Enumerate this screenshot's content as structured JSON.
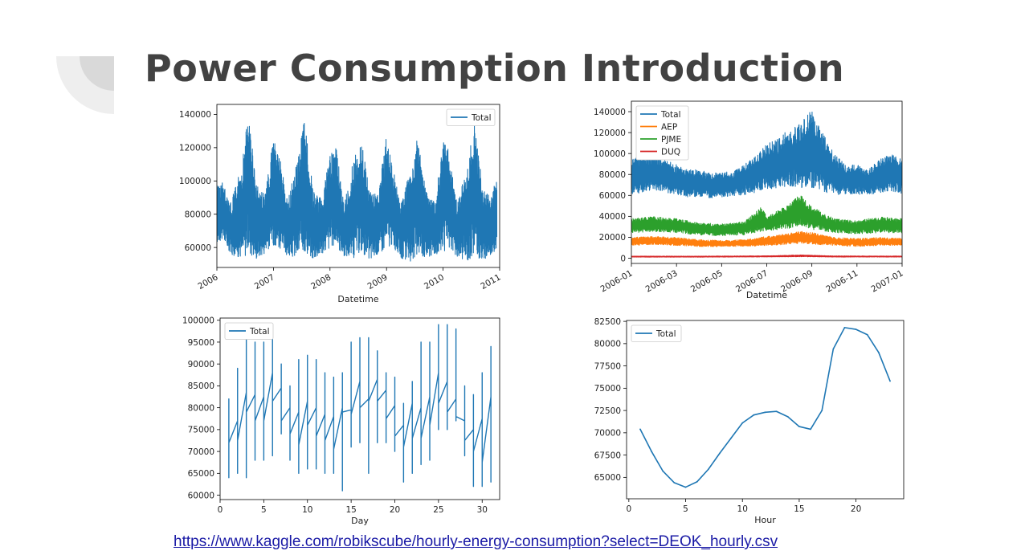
{
  "slide": {
    "title": "Power Consumption Introduction",
    "link": "https://www.kaggle.com/robikscube/hourly-energy-consumption?select=DEOK_hourly.csv"
  },
  "colors": {
    "title": "#424242",
    "link": "#1a1aa6",
    "deco_light": "#eeeeee",
    "deco_dark": "#d9d9d9",
    "series_blue": "#1f77b4",
    "series_orange": "#ff7f0e",
    "series_green": "#2ca02c",
    "series_red": "#d62728"
  },
  "chart_data": [
    {
      "id": "total-2006-2011",
      "type": "line",
      "title": "",
      "xlabel": "Datetime",
      "ylabel": "",
      "xlim": [
        2006,
        2011
      ],
      "ylim": [
        48000,
        146000
      ],
      "xticks": [
        2006,
        2007,
        2008,
        2009,
        2010,
        2011
      ],
      "xtick_labels": [
        "2006",
        "2007",
        "2008",
        "2009",
        "2010",
        "2011"
      ],
      "xtick_rotation": 30,
      "yticks": [
        60000,
        80000,
        100000,
        120000,
        140000
      ],
      "ytick_labels": [
        "60000",
        "80000",
        "100000",
        "120000",
        "140000"
      ],
      "grid": false,
      "legend_position": "top-right",
      "series": [
        {
          "name": "Total",
          "color": "#1f77b4",
          "render": "hourly-band",
          "x": [
            2006.0,
            2006.1,
            2006.25,
            2006.45,
            2006.55,
            2006.7,
            2006.85,
            2007.0,
            2007.1,
            2007.25,
            2007.45,
            2007.55,
            2007.7,
            2007.85,
            2008.0,
            2008.1,
            2008.25,
            2008.45,
            2008.55,
            2008.7,
            2008.85,
            2009.0,
            2009.1,
            2009.25,
            2009.45,
            2009.55,
            2009.7,
            2009.85,
            2010.0,
            2010.1,
            2010.25,
            2010.45,
            2010.55,
            2010.7,
            2010.85,
            2010.95
          ],
          "high": [
            99000,
            100000,
            88000,
            112000,
            145000,
            100000,
            92000,
            128000,
            118000,
            88000,
            120000,
            140000,
            95000,
            90000,
            118000,
            125000,
            86000,
            120000,
            127000,
            95000,
            92000,
            130000,
            112000,
            86000,
            112000,
            128000,
            95000,
            88000,
            125000,
            120000,
            86000,
            115000,
            136000,
            98000,
            90000,
            106000
          ],
          "low": [
            62000,
            64000,
            55000,
            52000,
            55000,
            52000,
            56000,
            60000,
            58000,
            54000,
            52000,
            56000,
            52000,
            55000,
            58000,
            60000,
            54000,
            52000,
            56000,
            51000,
            55000,
            58000,
            60000,
            53000,
            50000,
            55000,
            52000,
            55000,
            56000,
            58000,
            53000,
            50000,
            54000,
            50000,
            55000,
            58000
          ]
        }
      ]
    },
    {
      "id": "regions-2006",
      "type": "line",
      "title": "",
      "xlabel": "Datetime",
      "ylabel": "",
      "xlim": [
        0,
        12
      ],
      "ylim": [
        -5000,
        150000
      ],
      "xticks": [
        0,
        2,
        4,
        6,
        8,
        10,
        12
      ],
      "xtick_labels": [
        "2006-01",
        "2006-03",
        "2006-05",
        "2006-07",
        "2006-09",
        "2006-11",
        "2007-01"
      ],
      "xtick_rotation": 30,
      "yticks": [
        0,
        20000,
        40000,
        60000,
        80000,
        100000,
        120000,
        140000
      ],
      "ytick_labels": [
        "0",
        "20000",
        "40000",
        "60000",
        "80000",
        "100000",
        "120000",
        "140000"
      ],
      "grid": false,
      "legend_position": "top-left",
      "series": [
        {
          "name": "Total",
          "color": "#1f77b4",
          "render": "hourly-band",
          "x": [
            0,
            0.5,
            1,
            1.5,
            2,
            2.5,
            3,
            3.5,
            4,
            4.5,
            5,
            5.5,
            6,
            6.5,
            7,
            7.5,
            8,
            8.5,
            9,
            9.5,
            10,
            10.5,
            11,
            11.5,
            12
          ],
          "high": [
            95000,
            100000,
            97000,
            95000,
            90000,
            85000,
            85000,
            82000,
            82000,
            84000,
            90000,
            98000,
            110000,
            115000,
            125000,
            130000,
            145000,
            120000,
            100000,
            90000,
            90000,
            85000,
            95000,
            100000,
            95000
          ],
          "low": [
            60000,
            62000,
            65000,
            62000,
            60000,
            58000,
            58000,
            57000,
            58000,
            58000,
            60000,
            62000,
            65000,
            65000,
            68000,
            66000,
            65000,
            62000,
            60000,
            60000,
            60000,
            60000,
            62000,
            63000,
            60000
          ]
        },
        {
          "name": "AEP",
          "color": "#ff7f0e",
          "render": "hourly-band",
          "x": [
            0,
            1,
            2,
            3,
            4,
            5,
            6,
            7,
            7.5,
            8,
            9,
            10,
            11,
            12
          ],
          "high": [
            20000,
            21000,
            20000,
            18000,
            17000,
            18000,
            21000,
            24000,
            26000,
            25000,
            20000,
            19000,
            20000,
            19000
          ],
          "low": [
            12000,
            13000,
            12000,
            11000,
            11000,
            11000,
            12000,
            13000,
            14000,
            13000,
            12000,
            11000,
            12000,
            12000
          ]
        },
        {
          "name": "PJME",
          "color": "#2ca02c",
          "render": "hourly-band",
          "x": [
            0,
            1,
            2,
            3,
            4,
            5,
            5.8,
            6,
            7,
            7.5,
            8,
            9,
            10,
            11,
            12
          ],
          "high": [
            38000,
            40000,
            38000,
            34000,
            33000,
            35000,
            50000,
            40000,
            52000,
            62000,
            50000,
            38000,
            36000,
            40000,
            38000
          ],
          "low": [
            24000,
            25000,
            24000,
            22000,
            21000,
            22000,
            25000,
            26000,
            28000,
            30000,
            27000,
            24000,
            23000,
            24000,
            24000
          ]
        },
        {
          "name": "DUQ",
          "color": "#d62728",
          "render": "hourly-band",
          "x": [
            0,
            3,
            6,
            7.5,
            9,
            12
          ],
          "high": [
            2000,
            2000,
            2300,
            3200,
            2200,
            2100
          ],
          "low": [
            1000,
            1000,
            1200,
            1400,
            1100,
            1100
          ]
        }
      ]
    },
    {
      "id": "total-by-day",
      "type": "line",
      "title": "",
      "xlabel": "Day",
      "ylabel": "",
      "xlim": [
        0,
        32
      ],
      "ylim": [
        59000,
        100500
      ],
      "xticks": [
        0,
        5,
        10,
        15,
        20,
        25,
        30
      ],
      "xtick_labels": [
        "0",
        "5",
        "10",
        "15",
        "20",
        "25",
        "30"
      ],
      "yticks": [
        60000,
        65000,
        70000,
        75000,
        80000,
        85000,
        90000,
        95000,
        100000
      ],
      "ytick_labels": [
        "60000",
        "65000",
        "70000",
        "75000",
        "80000",
        "85000",
        "90000",
        "95000",
        "100000"
      ],
      "grid": false,
      "legend_position": "top-left",
      "series": [
        {
          "name": "Total",
          "color": "#1f77b4",
          "render": "vertical-ranges",
          "x": [
            1,
            2,
            3,
            4,
            5,
            6,
            7,
            8,
            9,
            10,
            11,
            12,
            13,
            14,
            15,
            16,
            17,
            18,
            19,
            20,
            21,
            22,
            23,
            24,
            25,
            26,
            27,
            28,
            29,
            30,
            31
          ],
          "high": [
            82000,
            89000,
            96000,
            95000,
            95000,
            98000,
            90000,
            85000,
            91000,
            92000,
            91000,
            88000,
            87000,
            88000,
            95000,
            96000,
            96000,
            93000,
            88000,
            87000,
            81000,
            86000,
            95000,
            95000,
            99000,
            99000,
            98000,
            85000,
            83000,
            88000,
            94000
          ],
          "low": [
            64000,
            65000,
            64000,
            68000,
            68000,
            69000,
            74000,
            68000,
            65000,
            66000,
            66000,
            65000,
            65000,
            61000,
            71000,
            72000,
            65000,
            72000,
            72000,
            70000,
            63000,
            65000,
            67000,
            68000,
            75000,
            75000,
            77000,
            69000,
            62000,
            62000,
            63000
          ],
          "start": [
            75500,
            77000,
            83500,
            83000,
            82500,
            88000,
            84500,
            80000,
            79000,
            81500,
            80000,
            78500,
            78000,
            80000,
            79500,
            86000,
            82000,
            86500,
            84000,
            80500,
            76000,
            81000,
            80000,
            82500,
            88000,
            86000,
            82000,
            77000,
            75000,
            77500,
            82500
          ],
          "end": [
            72000,
            72500,
            79000,
            77000,
            77000,
            81500,
            77000,
            74000,
            71500,
            76000,
            73500,
            72500,
            70500,
            79000,
            78500,
            80000,
            81500,
            81500,
            77500,
            73500,
            71000,
            73000,
            73000,
            76000,
            81000,
            79000,
            78000,
            72500,
            70000,
            67500,
            71500
          ]
        }
      ]
    },
    {
      "id": "total-by-hour",
      "type": "line",
      "title": "",
      "xlabel": "Hour",
      "ylabel": "",
      "xlim": [
        -0.2,
        24.2
      ],
      "ylim": [
        62600,
        82600
      ],
      "xticks": [
        0,
        5,
        10,
        15,
        20
      ],
      "xtick_labels": [
        "0",
        "5",
        "10",
        "15",
        "20"
      ],
      "yticks": [
        65000,
        67500,
        70000,
        72500,
        75000,
        77500,
        80000,
        82500
      ],
      "ytick_labels": [
        "65000",
        "67500",
        "70000",
        "72500",
        "75000",
        "77500",
        "80000",
        "82500"
      ],
      "grid": false,
      "legend_position": "top-left",
      "series": [
        {
          "name": "Total",
          "color": "#1f77b4",
          "render": "line",
          "x": [
            1,
            2,
            3,
            4,
            5,
            6,
            7,
            8,
            9,
            10,
            11,
            12,
            13,
            14,
            15,
            16,
            17,
            18,
            19,
            20,
            21,
            22,
            23
          ],
          "values": [
            70400,
            67900,
            65700,
            64400,
            63900,
            64500,
            65900,
            67700,
            69400,
            71100,
            72000,
            72300,
            72400,
            71800,
            70700,
            70400,
            72500,
            79400,
            81800,
            81600,
            81000,
            79000,
            75800
          ]
        }
      ]
    }
  ]
}
